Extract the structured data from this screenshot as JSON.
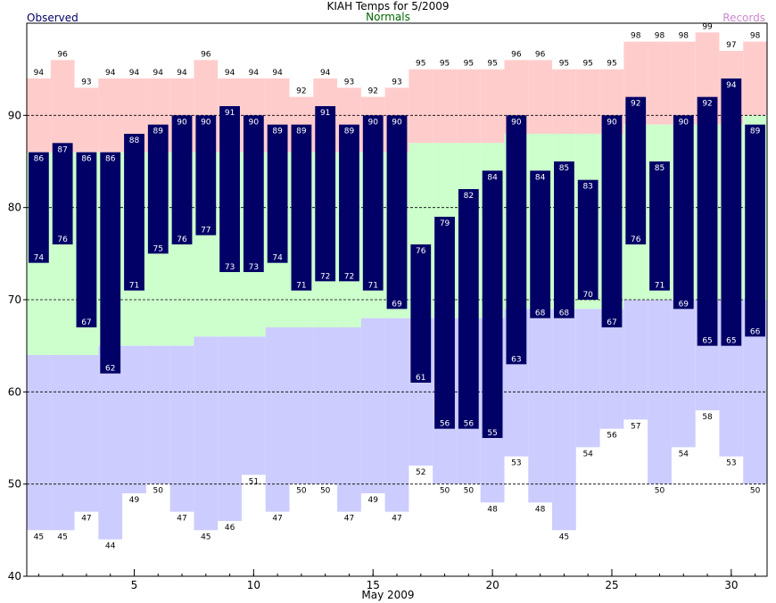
{
  "chart_data": {
    "type": "bar",
    "title": "KIAH Temps for 5/2009",
    "legend": {
      "observed": "Observed",
      "normals": "Normals",
      "records": "Records"
    },
    "xlabel": "May 2009",
    "ylabel": "",
    "xlim": [
      0.5,
      31.5
    ],
    "ylim": [
      40,
      100
    ],
    "x_ticks": [
      5,
      10,
      15,
      20,
      25,
      30
    ],
    "y_ticks": [
      40,
      50,
      60,
      70,
      80,
      90
    ],
    "grid": "dashed horizontal",
    "days": [
      1,
      2,
      3,
      4,
      5,
      6,
      7,
      8,
      9,
      10,
      11,
      12,
      13,
      14,
      15,
      16,
      17,
      18,
      19,
      20,
      21,
      22,
      23,
      24,
      25,
      26,
      27,
      28,
      29,
      30,
      31
    ],
    "series": [
      {
        "name": "Observed high",
        "values": [
          86,
          87,
          86,
          86,
          88,
          89,
          90,
          90,
          91,
          90,
          89,
          89,
          91,
          89,
          90,
          90,
          76,
          79,
          82,
          84,
          90,
          84,
          85,
          83,
          90,
          92,
          85,
          90,
          92,
          94,
          89
        ]
      },
      {
        "name": "Observed low",
        "values": [
          74,
          76,
          67,
          62,
          71,
          75,
          76,
          77,
          73,
          73,
          74,
          71,
          72,
          72,
          71,
          69,
          61,
          56,
          56,
          55,
          63,
          68,
          68,
          70,
          67,
          76,
          71,
          69,
          65,
          65,
          66
        ]
      },
      {
        "name": "Record high",
        "values": [
          94,
          96,
          93,
          94,
          94,
          94,
          94,
          96,
          94,
          94,
          94,
          92,
          94,
          93,
          92,
          93,
          95,
          95,
          95,
          95,
          96,
          96,
          95,
          95,
          95,
          98,
          98,
          98,
          99,
          97,
          98
        ]
      },
      {
        "name": "Record low",
        "values": [
          45,
          45,
          47,
          44,
          49,
          50,
          47,
          45,
          46,
          51,
          47,
          50,
          50,
          47,
          49,
          47,
          52,
          50,
          50,
          48,
          53,
          48,
          45,
          54,
          56,
          57,
          50,
          54,
          58,
          53,
          50
        ]
      },
      {
        "name": "Normal high",
        "values": [
          86,
          86,
          86,
          86,
          86,
          86,
          86,
          86,
          86,
          86,
          86,
          86,
          86,
          86,
          86,
          86,
          87,
          87,
          87,
          87,
          88,
          88,
          88,
          88,
          88,
          89,
          89,
          89,
          89,
          89,
          90
        ]
      },
      {
        "name": "Normal low",
        "values": [
          64,
          64,
          64,
          65,
          65,
          65,
          65,
          66,
          66,
          66,
          67,
          67,
          67,
          67,
          68,
          68,
          68,
          68,
          68,
          68,
          69,
          69,
          69,
          69,
          69,
          70,
          70,
          70,
          70,
          70,
          70
        ]
      }
    ],
    "colors": {
      "observed": "#000066",
      "normal": "#ccffcc",
      "record_high": "#ffcccc",
      "record_low": "#ccccff",
      "observed_text": "#000066",
      "normals_text": "#006600",
      "records_text": "#cc88cc"
    }
  }
}
